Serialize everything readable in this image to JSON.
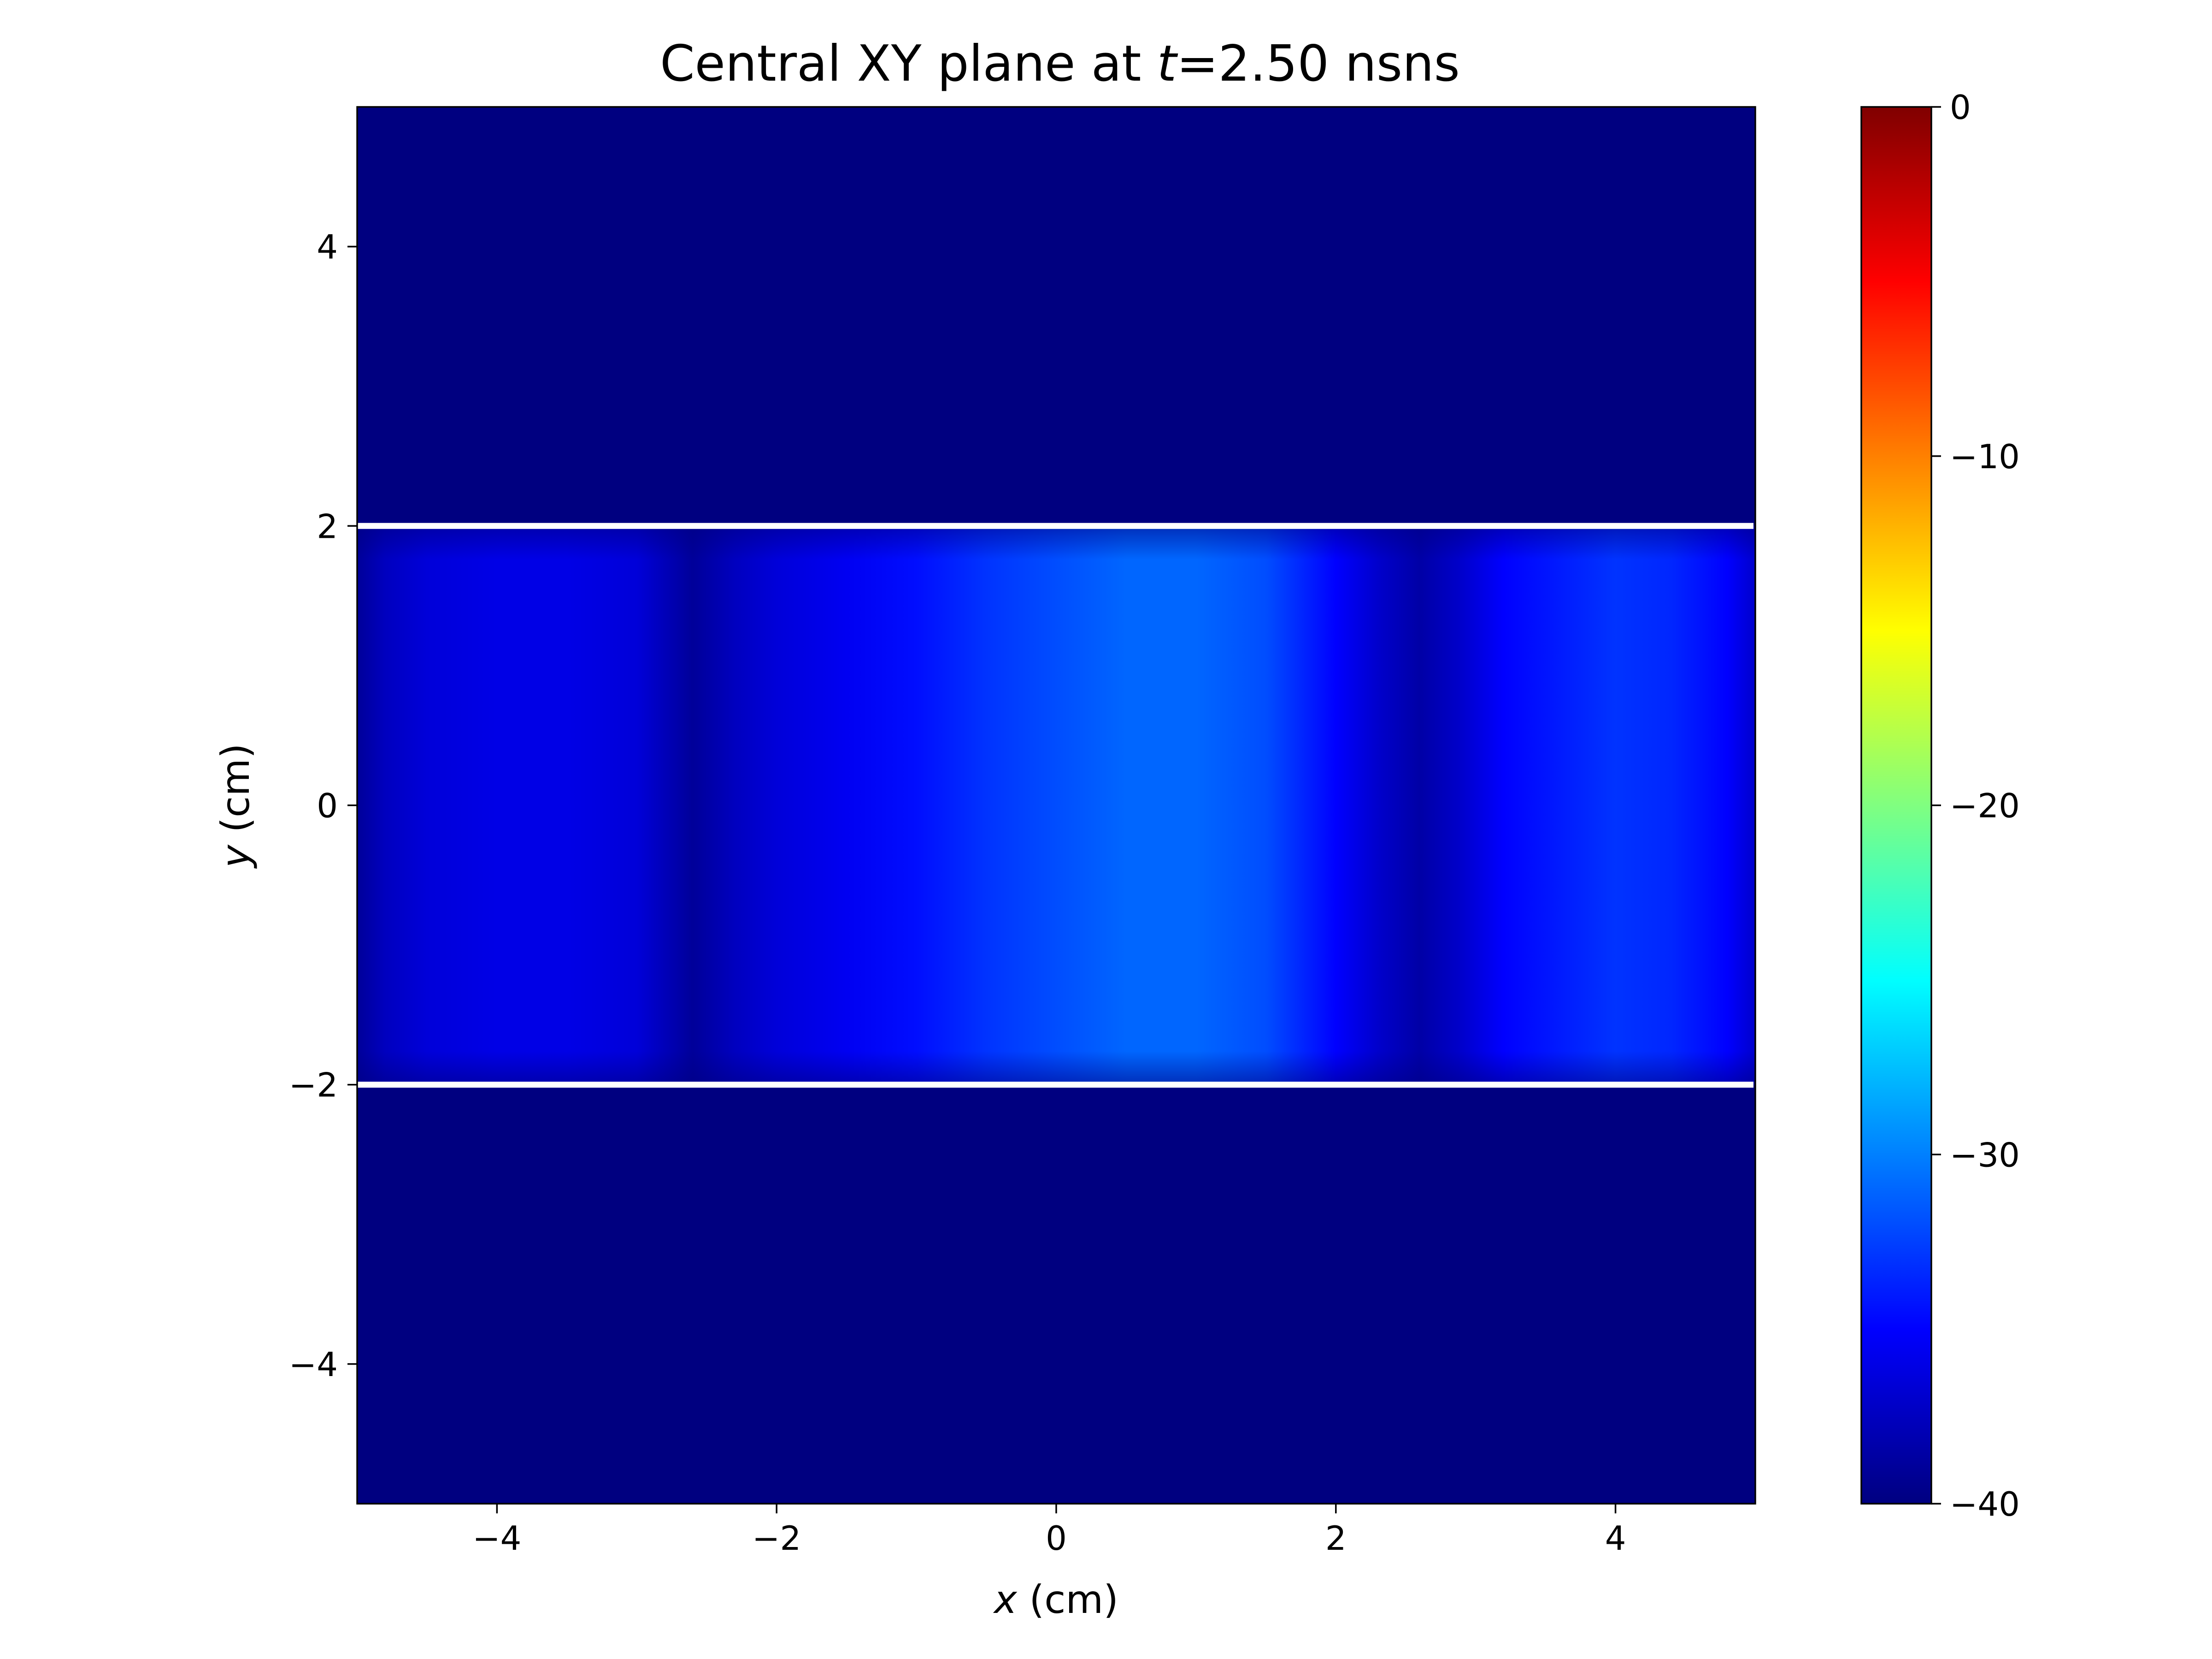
{
  "chart_data": {
    "type": "heatmap",
    "title_prefix": "Central XY plane at ",
    "title_var": "t",
    "title_suffix": "=2.50 nsns",
    "xlabel_var": "x",
    "xlabel_unit": " (cm)",
    "ylabel_var": "y",
    "ylabel_unit": " (cm)",
    "xlim": [
      -5,
      5
    ],
    "ylim": [
      -5,
      5
    ],
    "xticks": [
      -4,
      -2,
      0,
      2,
      4
    ],
    "xtick_labels": [
      "−4",
      "−2",
      "0",
      "2",
      "4"
    ],
    "yticks": [
      -4,
      -2,
      0,
      2,
      4
    ],
    "ytick_labels": [
      "−4",
      "−2",
      "0",
      "2",
      "4"
    ],
    "colormap": "jet",
    "clim": [
      -40,
      0
    ],
    "colorbar_ticks": [
      0,
      -10,
      -20,
      -30,
      -40
    ],
    "colorbar_tick_labels": [
      "0",
      "−10",
      "−20",
      "−30",
      "−40"
    ],
    "background_value": -40,
    "band_ylim": [
      -2,
      2
    ],
    "band_profile": {
      "x": [
        -5.0,
        -4.8,
        -4.5,
        -4.0,
        -3.5,
        -3.0,
        -2.6,
        -2.3,
        -2.0,
        -1.5,
        -1.0,
        -0.5,
        0.0,
        0.5,
        1.0,
        1.5,
        2.0,
        2.3,
        2.6,
        2.9,
        3.2,
        3.6,
        4.0,
        4.4,
        4.8,
        5.0
      ],
      "value": [
        -39,
        -37.5,
        -36.5,
        -36,
        -36,
        -36.5,
        -39,
        -37.5,
        -36.5,
        -35.5,
        -34.5,
        -33,
        -32,
        -31,
        -31,
        -32,
        -35,
        -37,
        -38.5,
        -37,
        -35,
        -34,
        -33,
        -33.5,
        -35,
        -37
      ]
    },
    "boundary_lines": [
      {
        "y": 2,
        "color": "#ffffff"
      },
      {
        "y": -2,
        "color": "#ffffff"
      }
    ],
    "grid": false
  }
}
